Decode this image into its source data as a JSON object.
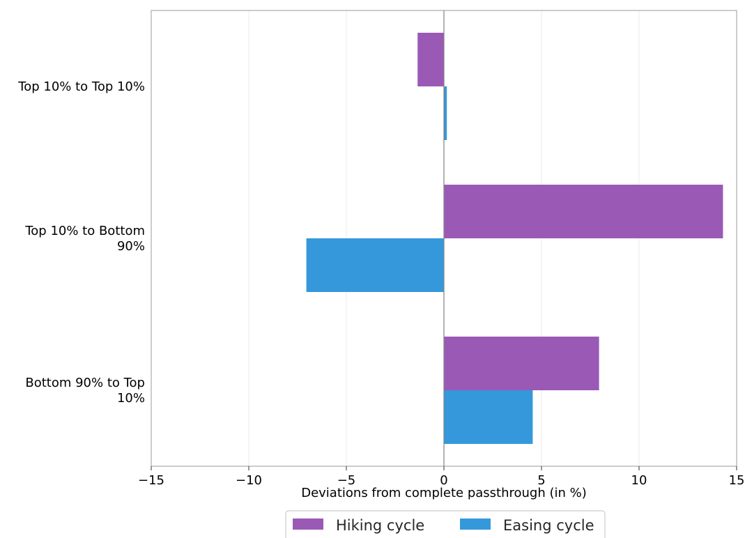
{
  "chart_data": {
    "type": "bar",
    "orientation": "horizontal",
    "title": "",
    "xlabel": "Deviations from complete passthrough (in %)",
    "ylabel": "",
    "categories": [
      [
        "Top 10% to Top 10%"
      ],
      [
        "Top 10% to Bottom",
        "90%"
      ],
      [
        "Bottom 90% to Top",
        "10%"
      ]
    ],
    "series": [
      {
        "name": "Hiking cycle",
        "color": "#9b59b6",
        "values": [
          -1.35,
          14.3,
          7.95
        ]
      },
      {
        "name": "Easing cycle",
        "color": "#3498db",
        "values": [
          0.15,
          -7.05,
          4.55
        ]
      }
    ],
    "xlim": [
      -15,
      15
    ],
    "xticks": [
      -15,
      -10,
      -5,
      0,
      5,
      10,
      15
    ],
    "xtick_labels": [
      "−15",
      "−10",
      "−5",
      "0",
      "5",
      "10",
      "15"
    ],
    "grid": "vertical",
    "zero_line": true,
    "legend_position": "bottom-center"
  }
}
